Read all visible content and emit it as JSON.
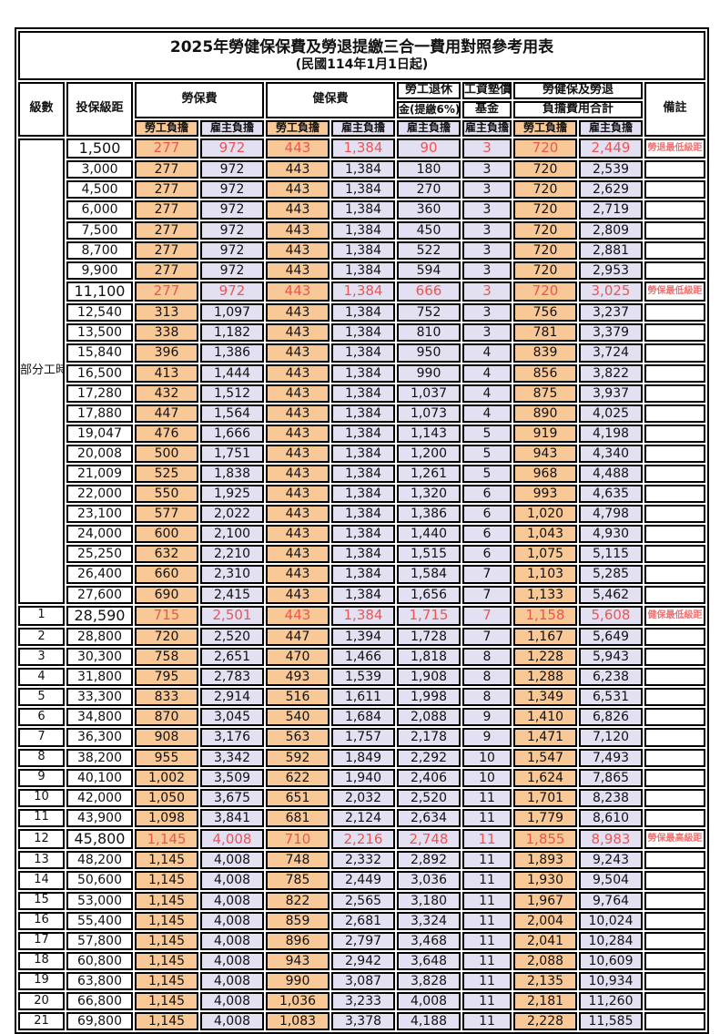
{
  "title": "2025年勞健保保費及勞退提繳三合一費用對照參考用表",
  "subtitle": "(民國114年1月1日起)",
  "colors": {
    "employee_bg": "#F8C996",
    "employer_bg": "#E2E0F1",
    "red_value": "#EE5454",
    "red_remark": "#EF7272",
    "border": "#000000"
  },
  "header": {
    "level": "級數",
    "bracket": "投保級距",
    "labor_ins": "勞保費",
    "health_ins": "健保費",
    "pension_line1": "勞工退休",
    "pension_line2": "金(提繳6%)",
    "wage_fund_line1": "工資墊償",
    "wage_fund_line2": "基金",
    "total_line1": "勞健保及勞退",
    "total_line2": "負擔費用合計",
    "remark": "備註",
    "employee": "勞工負擔",
    "employer": "雇主負擔"
  },
  "part_time_label": "部分工時",
  "part_time_rowspan": 23,
  "rows": [
    {
      "level": "",
      "bracket": "1,500",
      "values": [
        "277",
        "972",
        "443",
        "1,384",
        "90",
        "3",
        "720",
        "2,449"
      ],
      "remark": "勞退最低級距",
      "highlight": true
    },
    {
      "level": "",
      "bracket": "3,000",
      "values": [
        "277",
        "972",
        "443",
        "1,384",
        "180",
        "3",
        "720",
        "2,539"
      ],
      "remark": "",
      "highlight": false
    },
    {
      "level": "",
      "bracket": "4,500",
      "values": [
        "277",
        "972",
        "443",
        "1,384",
        "270",
        "3",
        "720",
        "2,629"
      ],
      "remark": "",
      "highlight": false
    },
    {
      "level": "",
      "bracket": "6,000",
      "values": [
        "277",
        "972",
        "443",
        "1,384",
        "360",
        "3",
        "720",
        "2,719"
      ],
      "remark": "",
      "highlight": false
    },
    {
      "level": "",
      "bracket": "7,500",
      "values": [
        "277",
        "972",
        "443",
        "1,384",
        "450",
        "3",
        "720",
        "2,809"
      ],
      "remark": "",
      "highlight": false
    },
    {
      "level": "",
      "bracket": "8,700",
      "values": [
        "277",
        "972",
        "443",
        "1,384",
        "522",
        "3",
        "720",
        "2,881"
      ],
      "remark": "",
      "highlight": false
    },
    {
      "level": "",
      "bracket": "9,900",
      "values": [
        "277",
        "972",
        "443",
        "1,384",
        "594",
        "3",
        "720",
        "2,953"
      ],
      "remark": "",
      "highlight": false
    },
    {
      "level": "",
      "bracket": "11,100",
      "values": [
        "277",
        "972",
        "443",
        "1,384",
        "666",
        "3",
        "720",
        "3,025"
      ],
      "remark": "勞保最低級距",
      "highlight": true
    },
    {
      "level": "",
      "bracket": "12,540",
      "values": [
        "313",
        "1,097",
        "443",
        "1,384",
        "752",
        "3",
        "756",
        "3,237"
      ],
      "remark": "",
      "highlight": false
    },
    {
      "level": "",
      "bracket": "13,500",
      "values": [
        "338",
        "1,182",
        "443",
        "1,384",
        "810",
        "3",
        "781",
        "3,379"
      ],
      "remark": "",
      "highlight": false
    },
    {
      "level": "",
      "bracket": "15,840",
      "values": [
        "396",
        "1,386",
        "443",
        "1,384",
        "950",
        "4",
        "839",
        "3,724"
      ],
      "remark": "",
      "highlight": false
    },
    {
      "level": "",
      "bracket": "16,500",
      "values": [
        "413",
        "1,444",
        "443",
        "1,384",
        "990",
        "4",
        "856",
        "3,822"
      ],
      "remark": "",
      "highlight": false
    },
    {
      "level": "",
      "bracket": "17,280",
      "values": [
        "432",
        "1,512",
        "443",
        "1,384",
        "1,037",
        "4",
        "875",
        "3,937"
      ],
      "remark": "",
      "highlight": false
    },
    {
      "level": "",
      "bracket": "17,880",
      "values": [
        "447",
        "1,564",
        "443",
        "1,384",
        "1,073",
        "4",
        "890",
        "4,025"
      ],
      "remark": "",
      "highlight": false
    },
    {
      "level": "",
      "bracket": "19,047",
      "values": [
        "476",
        "1,666",
        "443",
        "1,384",
        "1,143",
        "5",
        "919",
        "4,198"
      ],
      "remark": "",
      "highlight": false
    },
    {
      "level": "",
      "bracket": "20,008",
      "values": [
        "500",
        "1,751",
        "443",
        "1,384",
        "1,200",
        "5",
        "943",
        "4,340"
      ],
      "remark": "",
      "highlight": false
    },
    {
      "level": "",
      "bracket": "21,009",
      "values": [
        "525",
        "1,838",
        "443",
        "1,384",
        "1,261",
        "5",
        "968",
        "4,488"
      ],
      "remark": "",
      "highlight": false
    },
    {
      "level": "",
      "bracket": "22,000",
      "values": [
        "550",
        "1,925",
        "443",
        "1,384",
        "1,320",
        "6",
        "993",
        "4,635"
      ],
      "remark": "",
      "highlight": false
    },
    {
      "level": "",
      "bracket": "23,100",
      "values": [
        "577",
        "2,022",
        "443",
        "1,384",
        "1,386",
        "6",
        "1,020",
        "4,798"
      ],
      "remark": "",
      "highlight": false
    },
    {
      "level": "",
      "bracket": "24,000",
      "values": [
        "600",
        "2,100",
        "443",
        "1,384",
        "1,440",
        "6",
        "1,043",
        "4,930"
      ],
      "remark": "",
      "highlight": false
    },
    {
      "level": "",
      "bracket": "25,250",
      "values": [
        "632",
        "2,210",
        "443",
        "1,384",
        "1,515",
        "6",
        "1,075",
        "5,115"
      ],
      "remark": "",
      "highlight": false
    },
    {
      "level": "",
      "bracket": "26,400",
      "values": [
        "660",
        "2,310",
        "443",
        "1,384",
        "1,584",
        "7",
        "1,103",
        "5,285"
      ],
      "remark": "",
      "highlight": false
    },
    {
      "level": "",
      "bracket": "27,600",
      "values": [
        "690",
        "2,415",
        "443",
        "1,384",
        "1,656",
        "7",
        "1,133",
        "5,462"
      ],
      "remark": "",
      "highlight": false
    },
    {
      "level": "1",
      "bracket": "28,590",
      "values": [
        "715",
        "2,501",
        "443",
        "1,384",
        "1,715",
        "7",
        "1,158",
        "5,608"
      ],
      "remark": "健保最低級距",
      "highlight": true
    },
    {
      "level": "2",
      "bracket": "28,800",
      "values": [
        "720",
        "2,520",
        "447",
        "1,394",
        "1,728",
        "7",
        "1,167",
        "5,649"
      ],
      "remark": "",
      "highlight": false
    },
    {
      "level": "3",
      "bracket": "30,300",
      "values": [
        "758",
        "2,651",
        "470",
        "1,466",
        "1,818",
        "8",
        "1,228",
        "5,943"
      ],
      "remark": "",
      "highlight": false
    },
    {
      "level": "4",
      "bracket": "31,800",
      "values": [
        "795",
        "2,783",
        "493",
        "1,539",
        "1,908",
        "8",
        "1,288",
        "6,238"
      ],
      "remark": "",
      "highlight": false
    },
    {
      "level": "5",
      "bracket": "33,300",
      "values": [
        "833",
        "2,914",
        "516",
        "1,611",
        "1,998",
        "8",
        "1,349",
        "6,531"
      ],
      "remark": "",
      "highlight": false
    },
    {
      "level": "6",
      "bracket": "34,800",
      "values": [
        "870",
        "3,045",
        "540",
        "1,684",
        "2,088",
        "9",
        "1,410",
        "6,826"
      ],
      "remark": "",
      "highlight": false
    },
    {
      "level": "7",
      "bracket": "36,300",
      "values": [
        "908",
        "3,176",
        "563",
        "1,757",
        "2,178",
        "9",
        "1,471",
        "7,120"
      ],
      "remark": "",
      "highlight": false
    },
    {
      "level": "8",
      "bracket": "38,200",
      "values": [
        "955",
        "3,342",
        "592",
        "1,849",
        "2,292",
        "10",
        "1,547",
        "7,493"
      ],
      "remark": "",
      "highlight": false
    },
    {
      "level": "9",
      "bracket": "40,100",
      "values": [
        "1,002",
        "3,509",
        "622",
        "1,940",
        "2,406",
        "10",
        "1,624",
        "7,865"
      ],
      "remark": "",
      "highlight": false
    },
    {
      "level": "10",
      "bracket": "42,000",
      "values": [
        "1,050",
        "3,675",
        "651",
        "2,032",
        "2,520",
        "11",
        "1,701",
        "8,238"
      ],
      "remark": "",
      "highlight": false
    },
    {
      "level": "11",
      "bracket": "43,900",
      "values": [
        "1,098",
        "3,841",
        "681",
        "2,124",
        "2,634",
        "11",
        "1,779",
        "8,610"
      ],
      "remark": "",
      "highlight": false
    },
    {
      "level": "12",
      "bracket": "45,800",
      "values": [
        "1,145",
        "4,008",
        "710",
        "2,216",
        "2,748",
        "11",
        "1,855",
        "8,983"
      ],
      "remark": "勞保最高級距",
      "highlight": true
    },
    {
      "level": "13",
      "bracket": "48,200",
      "values": [
        "1,145",
        "4,008",
        "748",
        "2,332",
        "2,892",
        "11",
        "1,893",
        "9,243"
      ],
      "remark": "",
      "highlight": false
    },
    {
      "level": "14",
      "bracket": "50,600",
      "values": [
        "1,145",
        "4,008",
        "785",
        "2,449",
        "3,036",
        "11",
        "1,930",
        "9,504"
      ],
      "remark": "",
      "highlight": false
    },
    {
      "level": "15",
      "bracket": "53,000",
      "values": [
        "1,145",
        "4,008",
        "822",
        "2,565",
        "3,180",
        "11",
        "1,967",
        "9,764"
      ],
      "remark": "",
      "highlight": false
    },
    {
      "level": "16",
      "bracket": "55,400",
      "values": [
        "1,145",
        "4,008",
        "859",
        "2,681",
        "3,324",
        "11",
        "2,004",
        "10,024"
      ],
      "remark": "",
      "highlight": false
    },
    {
      "level": "17",
      "bracket": "57,800",
      "values": [
        "1,145",
        "4,008",
        "896",
        "2,797",
        "3,468",
        "11",
        "2,041",
        "10,284"
      ],
      "remark": "",
      "highlight": false
    },
    {
      "level": "18",
      "bracket": "60,800",
      "values": [
        "1,145",
        "4,008",
        "943",
        "2,942",
        "3,648",
        "11",
        "2,088",
        "10,609"
      ],
      "remark": "",
      "highlight": false
    },
    {
      "level": "19",
      "bracket": "63,800",
      "values": [
        "1,145",
        "4,008",
        "990",
        "3,087",
        "3,828",
        "11",
        "2,135",
        "10,934"
      ],
      "remark": "",
      "highlight": false
    },
    {
      "level": "20",
      "bracket": "66,800",
      "values": [
        "1,145",
        "4,008",
        "1,036",
        "3,233",
        "4,008",
        "11",
        "2,181",
        "11,260"
      ],
      "remark": "",
      "highlight": false
    },
    {
      "level": "21",
      "bracket": "69,800",
      "values": [
        "1,145",
        "4,008",
        "1,083",
        "3,378",
        "4,188",
        "11",
        "2,228",
        "11,585"
      ],
      "remark": "",
      "highlight": false
    }
  ]
}
